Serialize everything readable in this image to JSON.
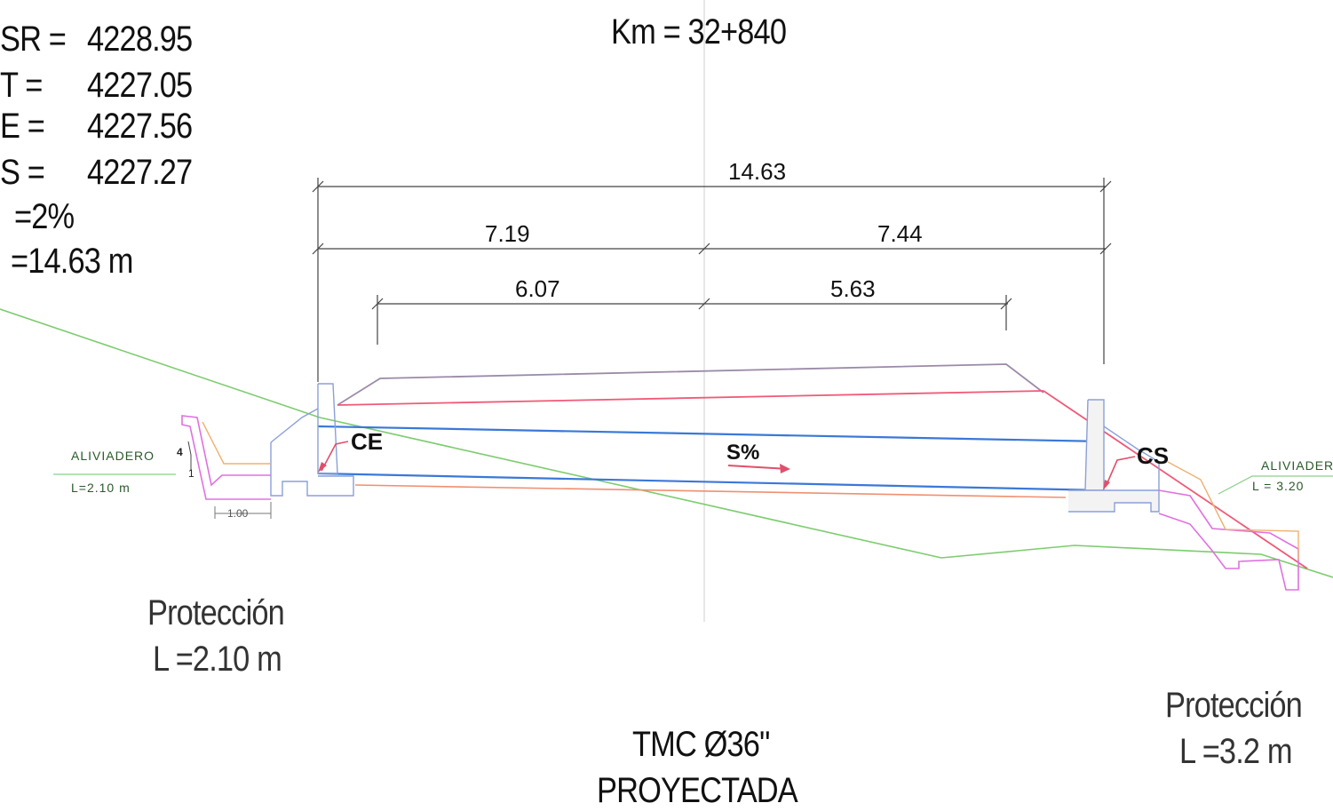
{
  "header": {
    "km": "Km = 32+840"
  },
  "params": [
    {
      "label": "SR =",
      "value": "4228.95"
    },
    {
      "label": "T =",
      "value": "4227.05"
    },
    {
      "label": "E =",
      "value": "4227.56"
    },
    {
      "label": "S =",
      "value": "4227.27"
    },
    {
      "label": "",
      "value": "=2%"
    },
    {
      "label": "",
      "value": "=14.63 m"
    }
  ],
  "dimensions": {
    "total": "14.63",
    "left_half": "7.19",
    "right_half": "7.44",
    "left_inner": "6.07",
    "right_inner": "5.63",
    "apron": "1.00",
    "slope_mark_a": "4",
    "slope_mark_b": "1"
  },
  "labels": {
    "ce": "CE",
    "cs": "CS",
    "slope": "S%",
    "aliviadero_left": "ALIVIADERO",
    "aliviadero_left_l": "L=2.10  m",
    "aliviadero_right": "ALIVIADER",
    "aliviadero_right_l": "L  =  3.20"
  },
  "protection_left": {
    "title": "Protección",
    "length": "L =2.10 m"
  },
  "protection_right": {
    "title": "Protección",
    "length": "L =3.2 m"
  },
  "pipe": {
    "type": "TMC Ø36\"",
    "status": "PROYECTADA"
  },
  "colors": {
    "terrain": "#7ccc6e",
    "fill_top": "#9a8aa8",
    "pipe_top": "#f05a78",
    "flow_line": "#3a78d8",
    "base_line": "#f09070",
    "headwall": "#8aa0d8",
    "protection": "#e070e0",
    "protection_outer": "#f0b070",
    "dimension": "#444444"
  }
}
